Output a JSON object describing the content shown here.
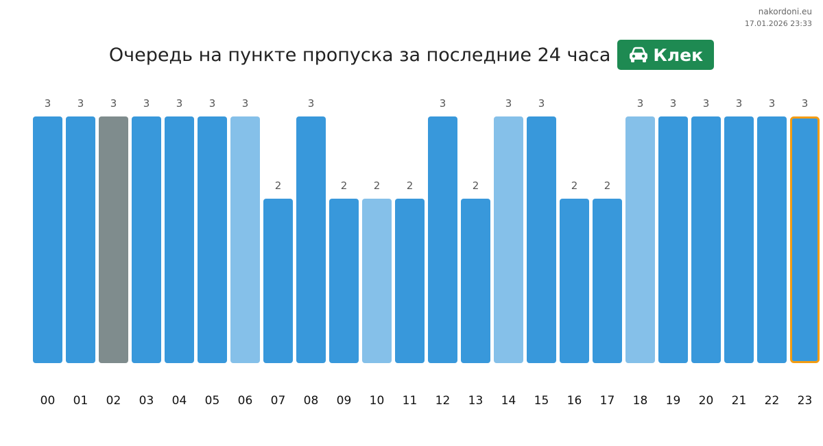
{
  "watermark": {
    "site": "nakordoni.eu",
    "timestamp": "17.01.2026 23:33"
  },
  "header": {
    "title": "Очередь на пункте пропуска за последние 24 часа",
    "badge_label": "Клек",
    "badge_icon": "car-icon",
    "badge_color": "#1e8a52"
  },
  "colors": {
    "normal": "#3898db",
    "light": "#85c0e9",
    "gray": "#7f8c8d",
    "highlight_border": "#f39c12"
  },
  "chart_data": {
    "type": "bar",
    "title": "",
    "xlabel": "",
    "ylabel": "",
    "ylim": [
      0,
      3
    ],
    "grid": false,
    "categories": [
      "00",
      "01",
      "02",
      "03",
      "04",
      "05",
      "06",
      "07",
      "08",
      "09",
      "10",
      "11",
      "12",
      "13",
      "14",
      "15",
      "16",
      "17",
      "18",
      "19",
      "20",
      "21",
      "22",
      "23"
    ],
    "values": [
      3,
      3,
      3,
      3,
      3,
      3,
      3,
      2,
      3,
      2,
      2,
      2,
      3,
      2,
      3,
      3,
      2,
      2,
      3,
      3,
      3,
      3,
      3,
      3
    ],
    "bar_styles": [
      "normal",
      "normal",
      "gray",
      "normal",
      "normal",
      "normal",
      "light",
      "normal",
      "normal",
      "normal",
      "light",
      "normal",
      "normal",
      "normal",
      "light",
      "normal",
      "normal",
      "normal",
      "light",
      "normal",
      "normal",
      "normal",
      "normal",
      "normal"
    ],
    "highlighted_index": 23
  }
}
